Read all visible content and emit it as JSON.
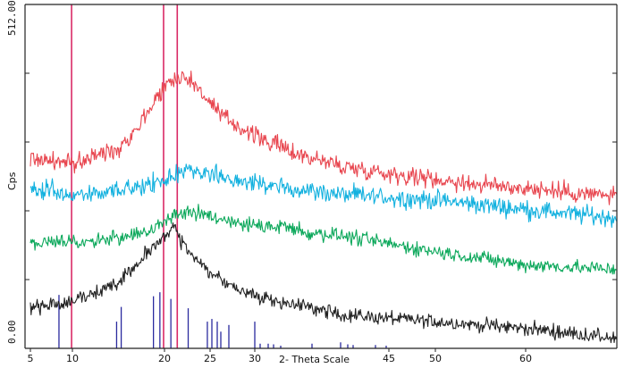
{
  "chart_data": {
    "type": "line",
    "title": "",
    "xlabel": "2- Theta Scale",
    "ylabel": "Cps",
    "xlim": [
      5,
      70
    ],
    "ylim": [
      0,
      512
    ],
    "y_top_label": "512.00",
    "y_bottom_label": "0.00",
    "x_ticks": [
      {
        "value": 5,
        "label": "5"
      },
      {
        "value": 10,
        "label": "10"
      },
      {
        "value": 20,
        "label": "20"
      },
      {
        "value": 25,
        "label": "25"
      },
      {
        "value": 30,
        "label": "30"
      },
      {
        "value": 45,
        "label": "45"
      },
      {
        "value": 50,
        "label": "50"
      },
      {
        "value": 60,
        "label": "60"
      }
    ],
    "series": [
      {
        "color": "#e8464f",
        "profile": [
          [
            5,
            285
          ],
          [
            10,
            276
          ],
          [
            15,
            300
          ],
          [
            17,
            330
          ],
          [
            20,
            393
          ],
          [
            22,
            410
          ],
          [
            24,
            385
          ],
          [
            26,
            350
          ],
          [
            30,
            318
          ],
          [
            35,
            290
          ],
          [
            40,
            272
          ],
          [
            45,
            262
          ],
          [
            50,
            253
          ],
          [
            55,
            245
          ],
          [
            60,
            240
          ],
          [
            65,
            233
          ],
          [
            70,
            228
          ]
        ],
        "noise": 9
      },
      {
        "color": "#13b1df",
        "profile": [
          [
            5,
            240
          ],
          [
            10,
            230
          ],
          [
            15,
            237
          ],
          [
            20,
            250
          ],
          [
            23,
            270
          ],
          [
            26,
            258
          ],
          [
            30,
            246
          ],
          [
            40,
            230
          ],
          [
            50,
            222
          ],
          [
            60,
            208
          ],
          [
            70,
            195
          ]
        ],
        "noise": 9
      },
      {
        "color": "#0ca85b",
        "profile": [
          [
            5,
            157
          ],
          [
            10,
            160
          ],
          [
            15,
            165
          ],
          [
            18,
            174
          ],
          [
            21,
            200
          ],
          [
            23,
            205
          ],
          [
            26,
            192
          ],
          [
            30,
            184
          ],
          [
            40,
            168
          ],
          [
            50,
            145
          ],
          [
            60,
            125
          ],
          [
            70,
            118
          ]
        ],
        "noise": 7
      },
      {
        "color": "#222222",
        "profile": [
          [
            5,
            60
          ],
          [
            10,
            70
          ],
          [
            15,
            98
          ],
          [
            18,
            140
          ],
          [
            20,
            166
          ],
          [
            21,
            185
          ],
          [
            22,
            155
          ],
          [
            24,
            125
          ],
          [
            27,
            95
          ],
          [
            30,
            78
          ],
          [
            40,
            50
          ],
          [
            50,
            40
          ],
          [
            60,
            30
          ],
          [
            70,
            15
          ]
        ],
        "noise": 7
      }
    ],
    "reference_lines": [
      {
        "x": 9.9,
        "color": "#d92a66"
      },
      {
        "x": 19.9,
        "color": "#d92a66"
      },
      {
        "x": 21.4,
        "color": "#d92a66"
      }
    ],
    "reference_bars": {
      "color": "#2a2a9e",
      "peaks": [
        {
          "x": 8.4,
          "h": 80
        },
        {
          "x": 14.8,
          "h": 40
        },
        {
          "x": 15.3,
          "h": 62
        },
        {
          "x": 18.8,
          "h": 78
        },
        {
          "x": 19.5,
          "h": 84
        },
        {
          "x": 20.7,
          "h": 74
        },
        {
          "x": 22.6,
          "h": 60
        },
        {
          "x": 24.7,
          "h": 40
        },
        {
          "x": 25.2,
          "h": 44
        },
        {
          "x": 25.8,
          "h": 40
        },
        {
          "x": 26.2,
          "h": 25
        },
        {
          "x": 27.1,
          "h": 35
        },
        {
          "x": 30.0,
          "h": 40
        },
        {
          "x": 30.6,
          "h": 7
        },
        {
          "x": 31.5,
          "h": 7
        },
        {
          "x": 32.1,
          "h": 6
        },
        {
          "x": 32.9,
          "h": 4
        },
        {
          "x": 36.4,
          "h": 7
        },
        {
          "x": 39.6,
          "h": 9
        },
        {
          "x": 40.4,
          "h": 6
        },
        {
          "x": 41.0,
          "h": 5
        },
        {
          "x": 43.5,
          "h": 5
        },
        {
          "x": 44.7,
          "h": 4
        }
      ]
    },
    "grid": false,
    "legend": false
  }
}
